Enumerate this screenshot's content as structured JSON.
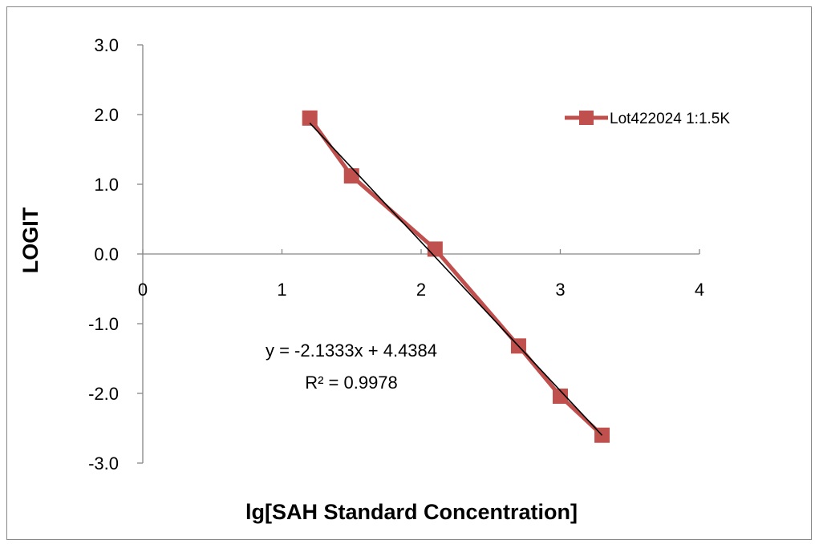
{
  "chart_data": {
    "type": "scatter",
    "xlabel": "lg[SAH Standard Concentration]",
    "ylabel": "LOGIT",
    "xlim": [
      0,
      4
    ],
    "ylim": [
      -3.0,
      3.0
    ],
    "x_ticks": [
      "0",
      "1",
      "2",
      "3",
      "4"
    ],
    "y_ticks": [
      "3.0",
      "2.0",
      "1.0",
      "0.0",
      "-1.0",
      "-2.0",
      "-3.0"
    ],
    "grid": false,
    "legend_position": "top-right",
    "series": [
      {
        "name": "Lot422024 1:1.5K",
        "color": "#C0504D",
        "marker": "square",
        "line": true,
        "x": [
          1.2,
          1.5,
          2.1,
          2.7,
          3.0,
          3.3
        ],
        "y": [
          1.95,
          1.12,
          0.07,
          -1.32,
          -2.04,
          -2.6
        ]
      }
    ],
    "trendline": {
      "type": "linear",
      "color": "#000000",
      "slope": -2.1333,
      "intercept": 4.4384,
      "x_range": [
        1.2,
        3.3
      ]
    },
    "annotations": {
      "equation": "y = -2.1333x + 4.4384",
      "r_squared": "R² = 0.9978"
    }
  }
}
